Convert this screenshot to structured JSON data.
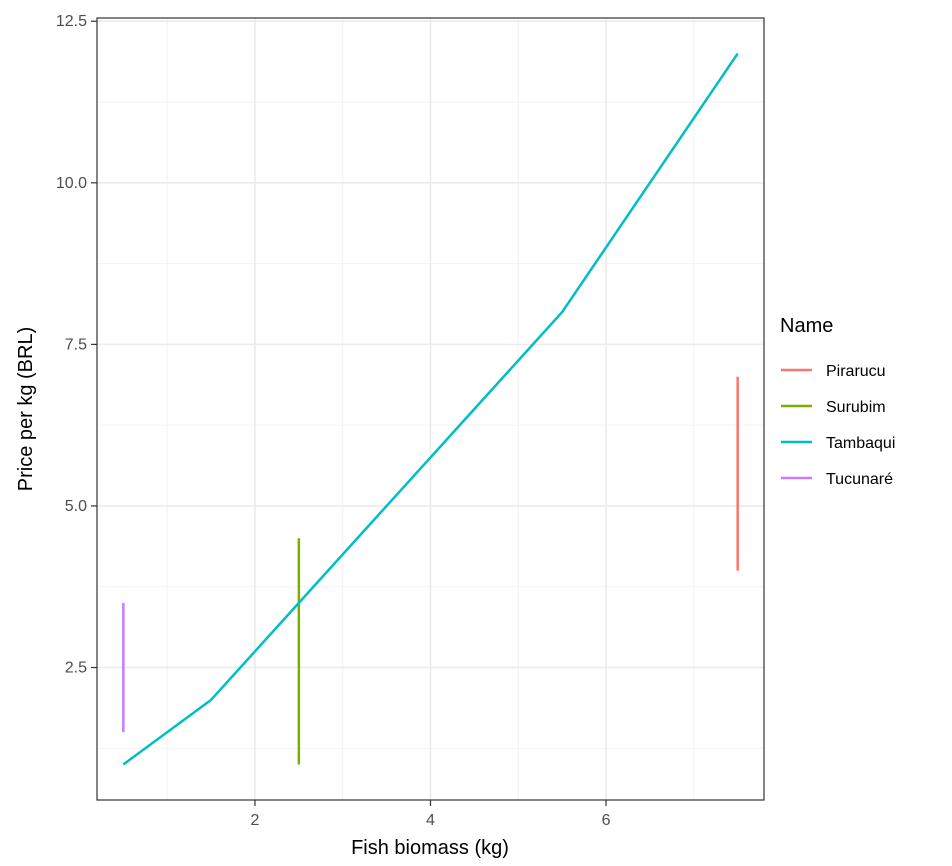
{
  "chart_data": {
    "type": "line",
    "title": "",
    "xlabel": "Fish biomass (kg)",
    "ylabel": "Price per kg (BRL)",
    "xlim": [
      0.2,
      7.8
    ],
    "ylim": [
      0.45,
      12.55
    ],
    "x_ticks": [
      2,
      4,
      6
    ],
    "x_tick_labels": [
      "2",
      "4",
      "6"
    ],
    "x_minor_ticks": [
      1,
      3,
      5,
      7
    ],
    "y_ticks": [
      2.5,
      5.0,
      7.5,
      10.0,
      12.5
    ],
    "y_tick_labels": [
      "2.5",
      "5.0",
      "7.5",
      "10.0",
      "12.5"
    ],
    "y_minor_ticks": [
      1.25,
      3.75,
      6.25,
      8.75,
      11.25
    ],
    "grid": true,
    "legend_title": "Name",
    "legend_position": "right",
    "series": [
      {
        "name": "Pirarucu",
        "color": "#F8766D",
        "x": [
          7.5,
          7.5
        ],
        "y": [
          4.0,
          7.0
        ]
      },
      {
        "name": "Surubim",
        "color": "#7CAE00",
        "x": [
          2.5,
          2.5
        ],
        "y": [
          1.0,
          4.5
        ]
      },
      {
        "name": "Tambaqui",
        "color": "#00BFC4",
        "x": [
          0.5,
          1.5,
          2.5,
          3.5,
          4.5,
          5.5,
          6.0,
          6.5,
          7.5
        ],
        "y": [
          1.0,
          2.0,
          3.5,
          5.0,
          6.5,
          8.0,
          9.0,
          10.0,
          12.0
        ]
      },
      {
        "name": "Tucunaré",
        "color": "#C77CFF",
        "x": [
          0.5,
          0.5
        ],
        "y": [
          1.5,
          3.5
        ]
      }
    ]
  }
}
